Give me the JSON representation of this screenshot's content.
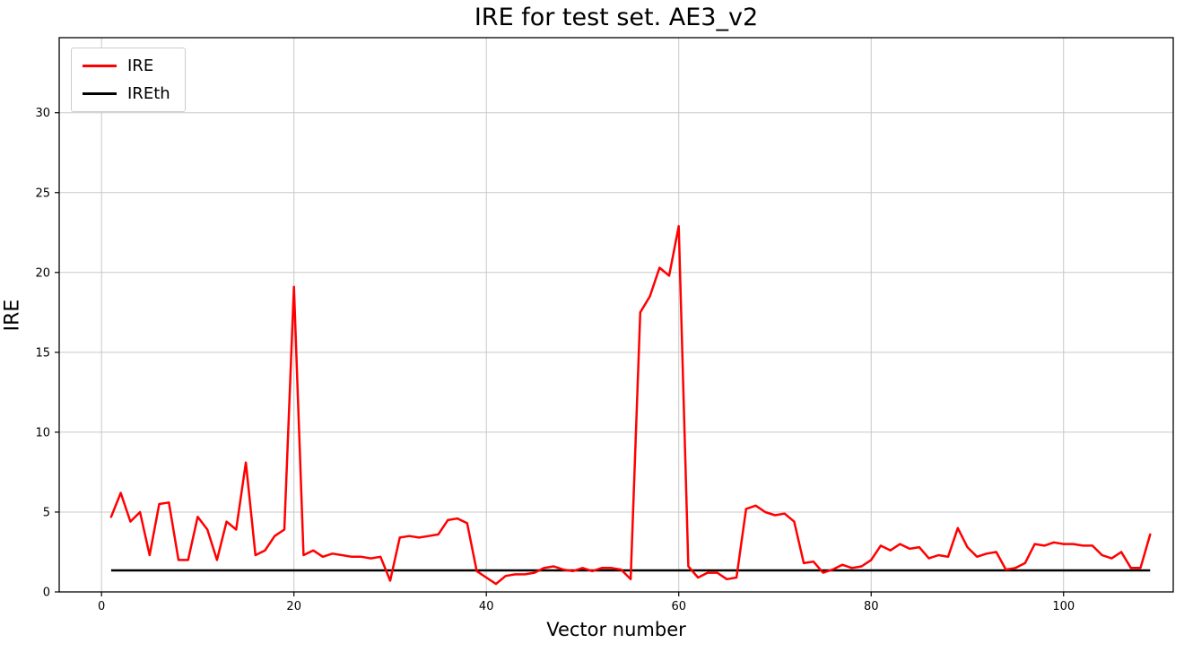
{
  "chart_data": {
    "type": "line",
    "title": "IRE for test set. AE3_v2",
    "xlabel": "Vector number",
    "ylabel": "IRE",
    "grid": true,
    "legend_position": "upper left",
    "xlim": [
      -4.4,
      111.4
    ],
    "ylim": [
      0,
      34.7
    ],
    "x_ticks": [
      0,
      20,
      40,
      60,
      80,
      100
    ],
    "y_ticks": [
      0,
      5,
      10,
      15,
      20,
      25,
      30
    ],
    "series": [
      {
        "name": "IRE",
        "color": "#ff0000",
        "x_start": 1,
        "values": [
          4.7,
          6.2,
          4.4,
          5.0,
          2.3,
          5.5,
          5.6,
          2.0,
          2.0,
          4.7,
          3.9,
          2.0,
          4.4,
          3.9,
          8.1,
          2.3,
          2.6,
          3.5,
          3.9,
          19.1,
          2.3,
          2.6,
          2.2,
          2.4,
          2.3,
          2.2,
          2.2,
          2.1,
          2.2,
          0.7,
          3.4,
          3.5,
          3.4,
          3.5,
          3.6,
          4.5,
          4.6,
          4.3,
          1.3,
          0.9,
          0.5,
          1.0,
          1.1,
          1.1,
          1.2,
          1.5,
          1.6,
          1.4,
          1.3,
          1.5,
          1.3,
          1.5,
          1.5,
          1.4,
          0.8,
          17.5,
          18.5,
          20.3,
          19.8,
          22.9,
          1.6,
          0.9,
          1.2,
          1.2,
          0.8,
          0.9,
          5.2,
          5.4,
          5.0,
          4.8,
          4.9,
          4.4,
          1.8,
          1.9,
          1.2,
          1.4,
          1.7,
          1.5,
          1.6,
          2.0,
          2.9,
          2.6,
          3.0,
          2.7,
          2.8,
          2.1,
          2.3,
          2.2,
          4.0,
          2.8,
          2.2,
          2.4,
          2.5,
          1.4,
          1.5,
          1.8,
          3.0,
          2.9,
          3.1,
          3.0,
          3.0,
          2.9,
          2.9,
          2.3,
          2.1,
          2.5,
          1.5,
          1.5,
          3.6
        ]
      },
      {
        "name": "IREth",
        "color": "#000000",
        "threshold": 1.35,
        "x_range": [
          1,
          109
        ]
      }
    ],
    "colors": {
      "grid": "#c8c8c8",
      "spine": "#000000",
      "background": "#ffffff"
    }
  }
}
